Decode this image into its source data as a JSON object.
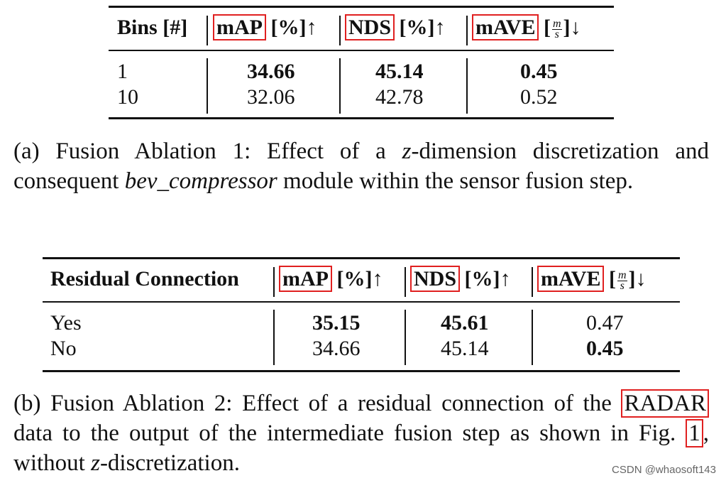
{
  "table_a": {
    "header": {
      "col1": "Bins [#]",
      "map_label": "mAP",
      "map_unit": " [%]↑",
      "nds_label": "NDS",
      "nds_unit": " [%]↑",
      "mave_label": "mAVE",
      "mave_unit_open": " [",
      "mave_unit_num": "m",
      "mave_unit_den": "s",
      "mave_unit_close": "]↓"
    },
    "rows": [
      {
        "c1": "1",
        "map": "34.66",
        "nds": "45.14",
        "mave": "0.45"
      },
      {
        "c1": "10",
        "map": "32.06",
        "nds": "42.78",
        "mave": "0.52"
      }
    ]
  },
  "caption_a": {
    "pre": "(a) Fusion Ablation 1: Effect of a ",
    "var": "z",
    "mid": "-dimension discretization and consequent ",
    "module": "bev_compressor",
    "post": " module within the sensor fusion step."
  },
  "table_b": {
    "header": {
      "col1": "Residual Connection",
      "map_label": "mAP",
      "map_unit": " [%]↑",
      "nds_label": "NDS",
      "nds_unit": " [%]↑",
      "mave_label": "mAVE",
      "mave_unit_open": " [",
      "mave_unit_num": "m",
      "mave_unit_den": "s",
      "mave_unit_close": "]↓"
    },
    "rows": [
      {
        "c1": "Yes",
        "map": "35.15",
        "nds": "45.61",
        "mave": "0.47"
      },
      {
        "c1": "No",
        "map": "34.66",
        "nds": "45.14",
        "mave": "0.45"
      }
    ]
  },
  "caption_b": {
    "pre": "(b) Fusion Ablation 2: Effect of a residual connection of the ",
    "radar": "RADAR",
    "mid": " data to the output of the intermediate fusion step as shown in Fig. ",
    "fig": "1",
    "post_a": ", without ",
    "var": "z",
    "post_b": "-discretization."
  },
  "watermark": "CSDN @whaosoft143"
}
